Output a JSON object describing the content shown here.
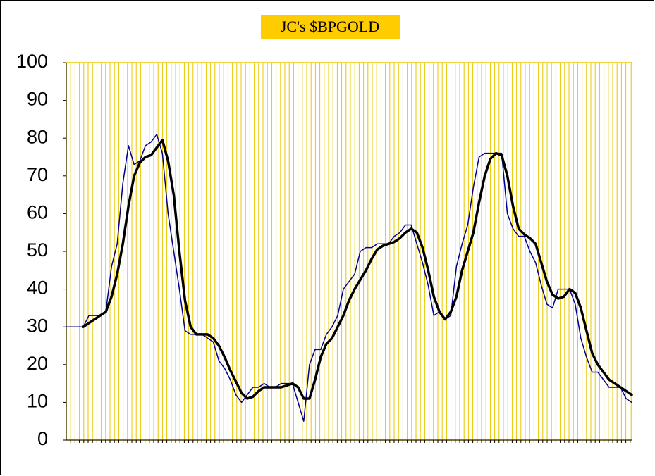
{
  "chart_data": {
    "type": "line",
    "title": "JC's $BPGOLD",
    "ylim": [
      0,
      100
    ],
    "yticks": [
      0,
      10,
      20,
      30,
      40,
      50,
      60,
      70,
      80,
      90,
      100
    ],
    "grid": true,
    "series": [
      {
        "color": "#00008b",
        "values": [
          30,
          30,
          30,
          30,
          33,
          33,
          33,
          34,
          46,
          52,
          68,
          78,
          73,
          74,
          78,
          79,
          81,
          76,
          60,
          50,
          40,
          29,
          28,
          28,
          28,
          27,
          26,
          21,
          19,
          16,
          12,
          10,
          12,
          14,
          14,
          15,
          14,
          14,
          15,
          15,
          15,
          10,
          5,
          20,
          24,
          24,
          28,
          30,
          33,
          40,
          42,
          44,
          50,
          51,
          51,
          52,
          52,
          52,
          54,
          55,
          57,
          57,
          52,
          47,
          41,
          33,
          34,
          32,
          33,
          46,
          52,
          57,
          67,
          75,
          76,
          76,
          76,
          76,
          60,
          56,
          54,
          54,
          50,
          47,
          41,
          36,
          35,
          40,
          40,
          40,
          36,
          27,
          22,
          18,
          18,
          16,
          14,
          14,
          14,
          11,
          10
        ]
      },
      {
        "color": "#000000",
        "values": [
          null,
          null,
          null,
          30,
          31,
          32,
          33,
          34,
          38,
          44,
          52,
          62,
          70,
          73.5,
          75,
          75.5,
          77.5,
          79.5,
          74,
          65,
          50,
          37,
          30,
          28,
          28,
          28,
          27,
          25,
          22,
          18.5,
          15.5,
          12.5,
          11,
          11.5,
          13,
          14,
          14,
          14,
          14,
          14.5,
          15,
          14,
          11,
          11,
          16,
          22,
          25.5,
          27,
          30,
          33,
          37,
          40,
          42.5,
          45,
          48,
          50.5,
          51.5,
          52,
          52.5,
          53.5,
          55,
          56,
          55,
          51,
          45,
          38,
          34,
          32,
          34,
          38,
          45,
          50,
          55,
          63,
          70,
          74.5,
          76,
          75.5,
          70,
          62,
          56,
          54.5,
          53.5,
          52,
          47,
          42,
          38.5,
          37.5,
          38,
          40,
          39,
          35,
          29,
          23,
          20,
          18,
          16,
          15,
          14,
          13,
          12
        ]
      }
    ]
  }
}
